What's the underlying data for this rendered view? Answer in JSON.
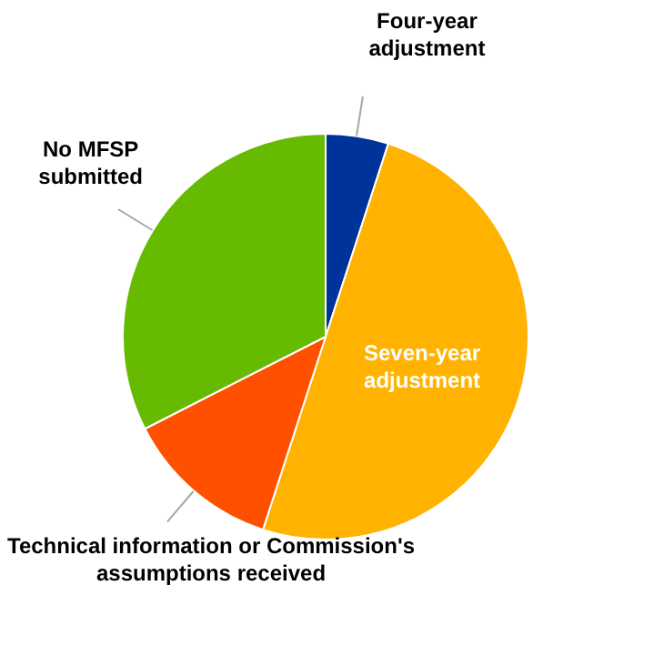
{
  "chart_data": {
    "type": "pie",
    "categories": [
      "Four-year adjustment",
      "Seven-year adjustment",
      "Technical information or Commission's assumptions received",
      "No MFSP submitted"
    ],
    "values": [
      5,
      50,
      12.5,
      32.5
    ],
    "colors": [
      "#003399",
      "#ffb300",
      "#ff5000",
      "#66bb00"
    ],
    "legend": false
  }
}
